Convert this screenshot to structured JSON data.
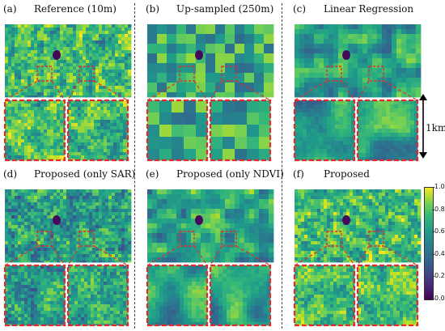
{
  "panels": [
    {
      "label": "(a)",
      "title": "Reference (10m)",
      "style": "fine"
    },
    {
      "label": "(b)",
      "title": "Up-sampled (250m)",
      "style": "blocky"
    },
    {
      "label": "(c)",
      "title": "Linear Regression",
      "style": "smooth"
    },
    {
      "label": "(d)",
      "title": "Proposed (only SAR)",
      "style": "sar"
    },
    {
      "label": "(e)",
      "title": "Proposed (only NDVI)",
      "style": "smooth"
    },
    {
      "label": "(f)",
      "title": "Proposed",
      "style": "fine"
    }
  ],
  "scale_label": "1km",
  "colorbar": {
    "ticks": [
      "1.0",
      "0.8",
      "0.6",
      "0.4",
      "0.2",
      "0.0"
    ],
    "min": 0,
    "max": 1
  },
  "colors": {
    "low": "#440154",
    "mid": "#21918c",
    "high": "#fde725",
    "zoom_box": "#e8292b"
  }
}
